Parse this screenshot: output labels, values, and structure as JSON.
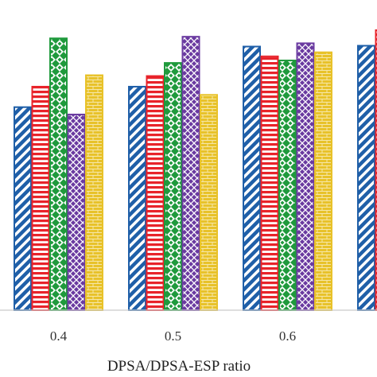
{
  "chart_data": {
    "type": "bar",
    "categories": [
      "0.4",
      "0.5",
      "0.6",
      ""
    ],
    "xlabel": "DPSA/DPSA-ESP ratio",
    "ylabel": "",
    "title": "",
    "ylim": [
      0,
      340
    ],
    "grid": false,
    "legend": "none",
    "series": [
      {
        "color": "#1f5fa8",
        "pattern": "diagonal-stripes",
        "values": [
          248,
          273,
          322,
          323
        ]
      },
      {
        "color": "#e8232a",
        "pattern": "horizontal-stripes",
        "values": [
          273,
          286,
          310,
          342
        ]
      },
      {
        "color": "#1f9a3c",
        "pattern": "diamond-checker",
        "values": [
          332,
          302,
          305,
          null
        ]
      },
      {
        "color": "#6a3aa0",
        "pattern": "crosshatch",
        "values": [
          239,
          334,
          326,
          null
        ]
      },
      {
        "color": "#e8c22a",
        "pattern": "brick",
        "values": [
          287,
          263,
          315,
          null
        ]
      }
    ]
  }
}
